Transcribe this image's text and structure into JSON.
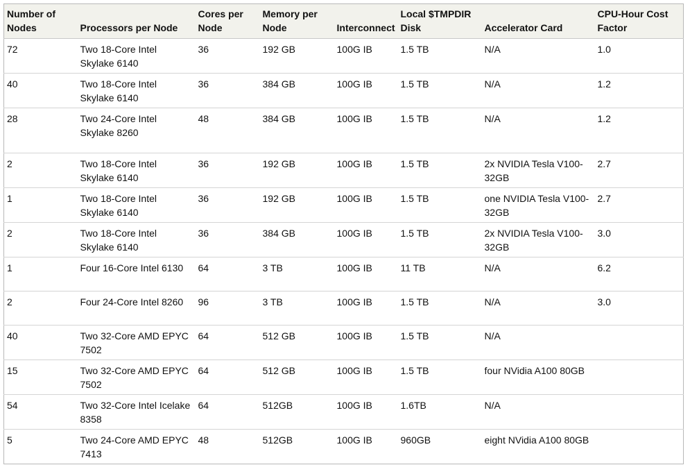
{
  "headers": [
    "Number of Nodes",
    "Processors per Node",
    "Cores per Node",
    "Memory per Node",
    "Interconnect",
    "Local $TMPDIR Disk",
    "Accelerator Card",
    "CPU-Hour Cost Factor"
  ],
  "rows": [
    [
      "72",
      "Two 18-Core Intel Skylake 6140",
      "36",
      "192 GB",
      "100G IB",
      "1.5 TB",
      "N/A",
      "1.0"
    ],
    [
      "40",
      "Two 18-Core Intel Skylake 6140",
      "36",
      "384 GB",
      "100G IB",
      "1.5 TB",
      "N/A",
      "1.2"
    ],
    [
      "28",
      "Two 24-Core Intel Skylake 8260",
      "48",
      "384 GB",
      "100G IB",
      "1.5 TB",
      "N/A",
      "1.2"
    ],
    [
      "2",
      "Two 18-Core Intel Skylake 6140",
      "36",
      "192 GB",
      "100G IB",
      "1.5 TB",
      "2x NVIDIA Tesla V100-32GB",
      "2.7"
    ],
    [
      "1",
      "Two 18-Core Intel Skylake 6140",
      "36",
      "192 GB",
      "100G IB",
      "1.5 TB",
      "one NVIDIA Tesla V100-32GB",
      "2.7"
    ],
    [
      "2",
      "Two 18-Core Intel Skylake 6140",
      "36",
      "384 GB",
      "100G IB",
      "1.5 TB",
      "2x NVIDIA Tesla V100-32GB",
      "3.0"
    ],
    [
      "1",
      "Four 16-Core Intel 6130",
      "64",
      "3 TB",
      "100G IB",
      "11 TB",
      "N/A",
      "6.2"
    ],
    [
      "2",
      "Four 24-Core Intel 8260",
      "96",
      "3 TB",
      "100G IB",
      "1.5 TB",
      "N/A",
      "3.0"
    ],
    [
      "40",
      "Two 32-Core  AMD EPYC 7502",
      "64",
      "512 GB",
      "100G IB",
      "1.5 TB",
      "N/A",
      ""
    ],
    [
      "15",
      "Two 32-Core  AMD EPYC 7502",
      "64",
      "512 GB",
      "100G IB",
      "1.5 TB",
      "four NVidia A100 80GB",
      ""
    ],
    [
      "54",
      "Two 32-Core Intel Icelake 8358",
      "64",
      "512GB",
      "100G IB",
      "1.6TB",
      "N/A",
      ""
    ],
    [
      "5",
      "Two 24-Core  AMD EPYC 7413",
      "48",
      "512GB",
      "100G IB",
      "960GB",
      "eight NVidia A100 80GB",
      ""
    ]
  ]
}
